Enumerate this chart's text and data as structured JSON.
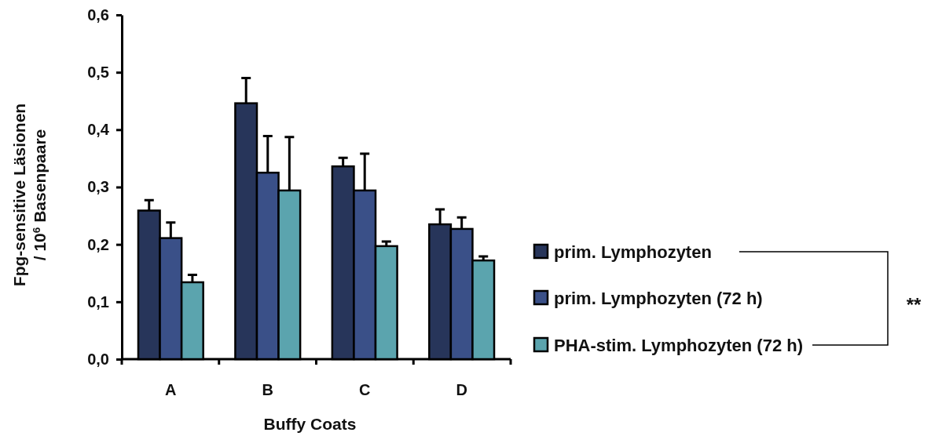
{
  "chart_data": {
    "type": "bar",
    "xlabel": "Buffy Coats",
    "ylabel": "Fpg-sensitive Läsionen\n/ 10$^{6}$ Basenpaare",
    "categories": [
      "A",
      "B",
      "C",
      "D"
    ],
    "series": [
      {
        "name": "prim. Lymphozyten",
        "color": "#27355a",
        "values": [
          0.259,
          0.446,
          0.336,
          0.235
        ],
        "errors": [
          0.018,
          0.044,
          0.015,
          0.026
        ]
      },
      {
        "name": "prim. Lymphozyten (72 h)",
        "color": "#3a5088",
        "values": [
          0.211,
          0.325,
          0.294,
          0.227
        ],
        "errors": [
          0.027,
          0.064,
          0.064,
          0.02
        ]
      },
      {
        "name": "PHA-stim. Lymphozyten (72 h)",
        "color": "#5ba4ae",
        "values": [
          0.134,
          0.294,
          0.197,
          0.172
        ],
        "errors": [
          0.013,
          0.093,
          0.008,
          0.007
        ]
      }
    ],
    "ylim": [
      0,
      0.6
    ],
    "yticks": [
      {
        "value": 0,
        "label": "0,0"
      },
      {
        "value": 0.1,
        "label": "0,1"
      },
      {
        "value": 0.2,
        "label": "0,2"
      },
      {
        "value": 0.3,
        "label": "0,3"
      },
      {
        "value": 0.4,
        "label": "0,4"
      },
      {
        "value": 0.5,
        "label": "0,5"
      },
      {
        "value": 0.6,
        "label": "0,6"
      }
    ],
    "legend": "right",
    "annotations": [
      "**"
    ]
  }
}
